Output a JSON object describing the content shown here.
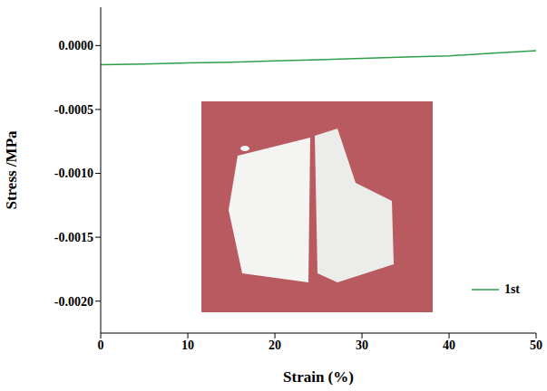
{
  "chart_data": {
    "type": "line",
    "x_label": "Strain (%)",
    "y_label": "Stress /MPa",
    "series": [
      {
        "name": "1st",
        "color": "#2e9e4a",
        "line_style": "solid",
        "marker": "none",
        "x": [
          0,
          5,
          10,
          15,
          20,
          25,
          30,
          35,
          40,
          45,
          50
        ],
        "values": [
          -0.00015,
          -0.000145,
          -0.000135,
          -0.00013,
          -0.00012,
          -0.00011,
          -0.0001,
          -9e-05,
          -8e-05,
          -6e-05,
          -4e-05
        ]
      }
    ],
    "xlim": [
      0,
      50
    ],
    "xticks": [
      0,
      10,
      20,
      30,
      40,
      50
    ],
    "ylim": [
      -0.00225,
      0.0003
    ],
    "yticks": [
      {
        "value": 0,
        "label": "0.0000"
      },
      {
        "value": -0.0005,
        "label": "-0.0005"
      },
      {
        "value": -0.001,
        "label": "-0.0010"
      },
      {
        "value": -0.0015,
        "label": "-0.0015"
      },
      {
        "value": -0.002,
        "label": "-0.0020"
      }
    ],
    "grid": false,
    "legend": "lower right"
  }
}
